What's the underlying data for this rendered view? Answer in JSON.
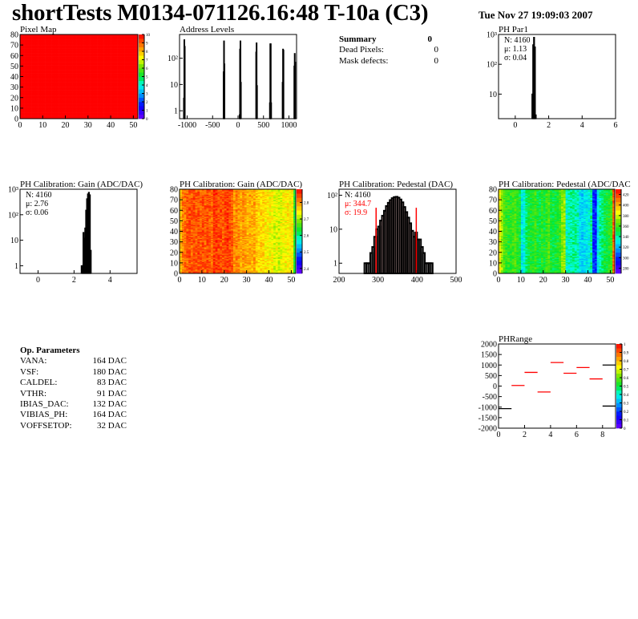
{
  "header": {
    "title": "shortTests M0134-071126.16:48 T-10a (C3)",
    "date": "Tue Nov 27 19:09:03 2007"
  },
  "summary": {
    "title": "Summary",
    "title_value": "0",
    "rows": [
      {
        "label": "Dead Pixels:",
        "value": "0"
      },
      {
        "label": "Mask defects:",
        "value": "0"
      }
    ]
  },
  "op_parameters": {
    "title": "Op. Parameters",
    "rows": [
      {
        "label": "VANA:",
        "value": "164 DAC"
      },
      {
        "label": "VSF:",
        "value": "180 DAC"
      },
      {
        "label": "CALDEL:",
        "value": "83 DAC"
      },
      {
        "label": "VTHR:",
        "value": "91 DAC"
      },
      {
        "label": "IBIAS_DAC:",
        "value": "132 DAC"
      },
      {
        "label": "VIBIAS_PH:",
        "value": "164 DAC"
      },
      {
        "label": "VOFFSETOP:",
        "value": "32 DAC"
      }
    ]
  },
  "colors": {
    "hist_line": "#000000",
    "fit": "#ff0000",
    "map_fill": "#ff0000"
  },
  "chart_data": [
    {
      "id": "pixelmap",
      "type": "heatmap",
      "title": "Pixel Map",
      "xlim": [
        0,
        52
      ],
      "ylim": [
        0,
        80
      ],
      "zlim": [
        0,
        10
      ],
      "xticks": [
        0,
        10,
        20,
        30,
        40,
        50
      ],
      "yticks": [
        0,
        10,
        20,
        30,
        40,
        50,
        60,
        70,
        80
      ],
      "zticks": [
        0,
        1,
        2,
        3,
        4,
        5,
        6,
        7,
        8,
        9,
        10
      ],
      "uniform_value": 10
    },
    {
      "id": "address",
      "type": "bar",
      "title": "Address Levels",
      "log_y": true,
      "xlim": [
        -1150,
        1150
      ],
      "ylim": [
        0.5,
        800
      ],
      "bin_width": 8,
      "xticks": [
        -1000,
        -500,
        0,
        500,
        1000
      ],
      "yticks": [
        {
          "v": 1,
          "label": "1"
        },
        {
          "v": 10,
          "label": "10"
        },
        {
          "v": 100,
          "label": "10²"
        }
      ],
      "bins": [
        [
          -1070,
          3
        ],
        [
          -1062,
          500
        ],
        [
          -1054,
          280
        ],
        [
          -290,
          30
        ],
        [
          -282,
          450
        ],
        [
          -274,
          60
        ],
        [
          25,
          0.7
        ],
        [
          33,
          220
        ],
        [
          41,
          450
        ],
        [
          49,
          12
        ],
        [
          350,
          170
        ],
        [
          358,
          380
        ],
        [
          366,
          9
        ],
        [
          620,
          2
        ],
        [
          628,
          350
        ],
        [
          636,
          350
        ],
        [
          644,
          2
        ],
        [
          870,
          12
        ],
        [
          878,
          220
        ],
        [
          886,
          200
        ],
        [
          1100,
          50
        ],
        [
          1108,
          150
        ],
        [
          1116,
          70
        ]
      ]
    },
    {
      "id": "phpar1",
      "type": "bar",
      "title": "PH Par1",
      "log_y": true,
      "xlim": [
        -1,
        6
      ],
      "ylim": [
        1.5,
        1000
      ],
      "bin_width": 0.05,
      "xticks": [
        0,
        2,
        4,
        6
      ],
      "yticks": [
        {
          "v": 10,
          "label": "10"
        },
        {
          "v": 100,
          "label": "10²"
        },
        {
          "v": 1000,
          "label": "10³"
        }
      ],
      "stats": {
        "n": "N: 4160",
        "mean": "μ: 1.13",
        "sigma": "σ: 0.04"
      },
      "bins": [
        [
          1.0,
          10
        ],
        [
          1.05,
          450
        ],
        [
          1.1,
          800
        ],
        [
          1.15,
          380
        ],
        [
          1.2,
          2
        ]
      ]
    },
    {
      "id": "gainhist",
      "type": "bar",
      "title": "PH Calibration: Gain (ADC/DAC)",
      "log_y": true,
      "xlim": [
        -1,
        5.5
      ],
      "ylim": [
        0.5,
        1000
      ],
      "bin_width": 0.05,
      "xticks": [
        0,
        2,
        4
      ],
      "yticks": [
        {
          "v": 1,
          "label": "1"
        },
        {
          "v": 10,
          "label": "10"
        },
        {
          "v": 100,
          "label": "10²"
        },
        {
          "v": 1000,
          "label": "10³"
        }
      ],
      "stats": {
        "n": "N: 4160",
        "mean": "μ: 2.76",
        "sigma": "σ: 0.06"
      },
      "bins": [
        [
          2.4,
          1
        ],
        [
          2.45,
          1
        ],
        [
          2.5,
          20
        ],
        [
          2.55,
          12
        ],
        [
          2.6,
          30
        ],
        [
          2.65,
          150
        ],
        [
          2.7,
          420
        ],
        [
          2.75,
          650
        ],
        [
          2.8,
          750
        ],
        [
          2.85,
          600
        ],
        [
          2.9,
          4
        ]
      ]
    },
    {
      "id": "gainmap",
      "type": "heatmap",
      "title": "PH Calibration: Gain (ADC/DAC)",
      "xlim": [
        0,
        52
      ],
      "ylim": [
        0,
        80
      ],
      "zlim": [
        2.37,
        2.88
      ],
      "xticks": [
        0,
        10,
        20,
        30,
        40,
        50
      ],
      "yticks": [
        0,
        10,
        20,
        30,
        40,
        50,
        60,
        70,
        80
      ],
      "zticks": [
        2.4,
        2.5,
        2.6,
        2.7,
        2.8
      ],
      "column_means": [
        2.77,
        2.81,
        2.82,
        2.83,
        2.84,
        2.83,
        2.84,
        2.83,
        2.84,
        2.83,
        2.84,
        2.83,
        2.84,
        2.83,
        2.82,
        2.85,
        2.85,
        2.84,
        2.84,
        2.83,
        2.84,
        2.85,
        2.84,
        2.83,
        2.8,
        2.81,
        2.8,
        2.79,
        2.8,
        2.79,
        2.78,
        2.79,
        2.78,
        2.79,
        2.77,
        2.76,
        2.76,
        2.76,
        2.75,
        2.75,
        2.74,
        2.74,
        2.72,
        2.73,
        2.72,
        2.73,
        2.74,
        2.74,
        2.75,
        2.74,
        2.75,
        2.64
      ]
    },
    {
      "id": "pedhist",
      "type": "bar",
      "title": "PH Calibration: Pedestal (DAC)",
      "log_y": true,
      "xlim": [
        200,
        500
      ],
      "ylim": [
        0.5,
        150
      ],
      "bin_width": 5,
      "xticks": [
        200,
        300,
        400,
        500
      ],
      "yticks": [
        {
          "v": 1,
          "label": "1"
        },
        {
          "v": 10,
          "label": "10"
        },
        {
          "v": 100,
          "label": "10²"
        }
      ],
      "stats": {
        "n": "N: 4160",
        "mean": "μ: 344.7",
        "sigma": "σ: 19.9"
      },
      "cut_lines": [
        295,
        398
      ],
      "bins": [
        [
          265,
          1
        ],
        [
          270,
          1
        ],
        [
          275,
          1
        ],
        [
          280,
          2
        ],
        [
          285,
          3
        ],
        [
          290,
          6
        ],
        [
          295,
          10
        ],
        [
          300,
          12
        ],
        [
          305,
          18
        ],
        [
          310,
          25
        ],
        [
          315,
          35
        ],
        [
          320,
          48
        ],
        [
          325,
          60
        ],
        [
          330,
          72
        ],
        [
          335,
          82
        ],
        [
          340,
          88
        ],
        [
          345,
          90
        ],
        [
          350,
          85
        ],
        [
          355,
          75
        ],
        [
          360,
          62
        ],
        [
          365,
          45
        ],
        [
          370,
          32
        ],
        [
          375,
          22
        ],
        [
          380,
          15
        ],
        [
          385,
          9
        ],
        [
          390,
          6
        ],
        [
          395,
          8
        ],
        [
          400,
          5
        ],
        [
          405,
          5
        ],
        [
          410,
          3
        ],
        [
          415,
          2
        ],
        [
          420,
          1
        ],
        [
          425,
          1
        ],
        [
          430,
          1
        ],
        [
          435,
          1
        ]
      ]
    },
    {
      "id": "pedmap",
      "type": "heatmap",
      "title": "PH Calibration: Pedestal (ADC/DAC",
      "xlim": [
        0,
        52
      ],
      "ylim": [
        0,
        80
      ],
      "zlim": [
        270,
        430
      ],
      "xticks": [
        0,
        10,
        20,
        30,
        40,
        50
      ],
      "yticks": [
        0,
        10,
        20,
        30,
        40,
        50,
        60,
        70,
        80
      ],
      "zticks": [
        280,
        300,
        320,
        340,
        360,
        380,
        400,
        420
      ],
      "column_means": [
        385,
        372,
        362,
        358,
        356,
        356,
        360,
        362,
        356,
        352,
        330,
        335,
        345,
        350,
        352,
        354,
        360,
        352,
        350,
        356,
        352,
        358,
        362,
        352,
        350,
        352,
        354,
        360,
        370,
        372,
        335,
        338,
        340,
        342,
        340,
        338,
        328,
        325,
        328,
        330,
        332,
        340,
        300,
        298,
        330,
        340,
        345,
        350,
        352,
        355,
        360,
        415
      ]
    },
    {
      "id": "phrange",
      "type": "segments",
      "title": "PHRange",
      "xlim": [
        0,
        9
      ],
      "ylim": [
        -2000,
        2000
      ],
      "zlim": [
        0,
        1
      ],
      "xticks": [
        0,
        2,
        4,
        6,
        8
      ],
      "yticks": [
        2000,
        1500,
        1000,
        500,
        0,
        -500,
        -1000,
        -1500,
        -2000
      ],
      "zticks": [
        0,
        0.1,
        0.2,
        0.3,
        0.4,
        0.5,
        0.6,
        0.7,
        0.8,
        0.9,
        1
      ],
      "segments": [
        {
          "x": [
            0,
            1
          ],
          "y": -1070,
          "color": "#000000"
        },
        {
          "x": [
            1,
            2
          ],
          "y": 30,
          "color": "#ff0000"
        },
        {
          "x": [
            2,
            3
          ],
          "y": 650,
          "color": "#ff0000"
        },
        {
          "x": [
            3,
            4
          ],
          "y": -280,
          "color": "#ff0000"
        },
        {
          "x": [
            4,
            5
          ],
          "y": 1120,
          "color": "#ff0000"
        },
        {
          "x": [
            5,
            6
          ],
          "y": 610,
          "color": "#ff0000"
        },
        {
          "x": [
            6,
            7
          ],
          "y": 880,
          "color": "#ff0000"
        },
        {
          "x": [
            7,
            8
          ],
          "y": 340,
          "color": "#ff0000"
        },
        {
          "x": [
            8,
            9
          ],
          "y": 1000,
          "color": "#000000"
        },
        {
          "x": [
            8,
            9
          ],
          "y": -950,
          "color": "#000000"
        }
      ]
    }
  ]
}
